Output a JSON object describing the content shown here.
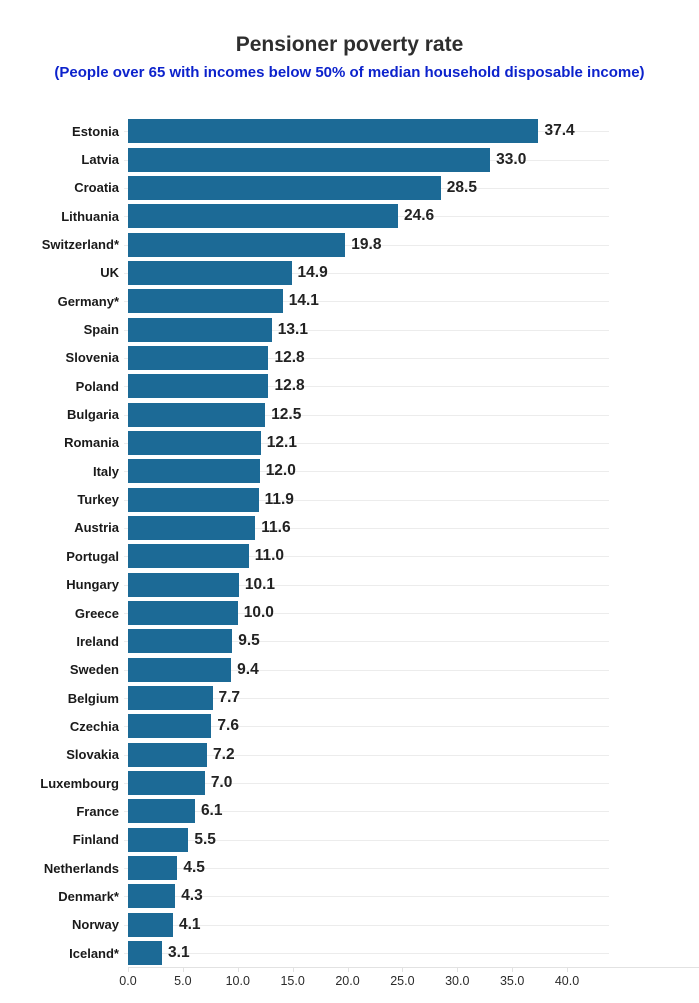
{
  "title": "Pensioner poverty rate",
  "subtitle": "(People over 65 with incomes below 50% of median household disposable income)",
  "colors": {
    "bar": "#1c6a96",
    "title": "#2e2e2e",
    "subtitle": "#0c22cc",
    "gridline": "#ececec",
    "axis_line": "#e2e2e2",
    "category_label": "#1a1a1a",
    "value_label": "#222222",
    "tick_label": "#2b2b2b"
  },
  "chart_data": {
    "type": "bar",
    "orientation": "horizontal",
    "title": "Pensioner poverty rate",
    "subtitle": "(People over 65 with incomes below 50% of median household disposable income)",
    "categories": [
      "Estonia",
      "Latvia",
      "Croatia",
      "Lithuania",
      "Switzerland*",
      "UK",
      "Germany*",
      "Spain",
      "Slovenia",
      "Poland",
      "Bulgaria",
      "Romania",
      "Italy",
      "Turkey",
      "Austria",
      "Portugal",
      "Hungary",
      "Greece",
      "Ireland",
      "Sweden",
      "Belgium",
      "Czechia",
      "Slovakia",
      "Luxembourg",
      "France",
      "Finland",
      "Netherlands",
      "Denmark*",
      "Norway",
      "Iceland*"
    ],
    "values": [
      37.4,
      33.0,
      28.5,
      24.6,
      19.8,
      14.9,
      14.1,
      13.1,
      12.8,
      12.8,
      12.5,
      12.1,
      12.0,
      11.9,
      11.6,
      11.0,
      10.1,
      10.0,
      9.5,
      9.4,
      7.7,
      7.6,
      7.2,
      7.0,
      6.1,
      5.5,
      4.5,
      4.3,
      4.1,
      3.1
    ],
    "value_labels": [
      "37.4",
      "33.0",
      "28.5",
      "24.6",
      "19.8",
      "14.9",
      "14.1",
      "13.1",
      "12.8",
      "12.8",
      "12.5",
      "12.1",
      "12.0",
      "11.9",
      "11.6",
      "11.0",
      "10.1",
      "10.0",
      "9.5",
      "9.4",
      "7.7",
      "7.6",
      "7.2",
      "7.0",
      "6.1",
      "5.5",
      "4.5",
      "4.3",
      "4.1",
      "3.1"
    ],
    "xlabel": "",
    "ylabel": "",
    "xlim": [
      0,
      40
    ],
    "x_tick_labels": [
      "0.0",
      "5.0",
      "10.0",
      "15.0",
      "20.0",
      "25.0",
      "30.0",
      "35.0",
      "40.0"
    ],
    "x_tick_values": [
      0,
      5,
      10,
      15,
      20,
      25,
      30,
      35,
      40
    ],
    "grid": "horizontal-category-gridlines",
    "legend": "none"
  }
}
